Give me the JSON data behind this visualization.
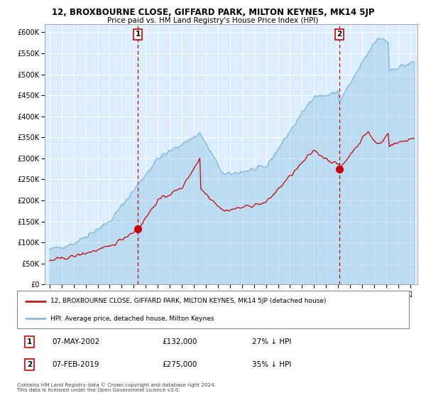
{
  "title": "12, BROXBOURNE CLOSE, GIFFARD PARK, MILTON KEYNES, MK14 5JP",
  "subtitle": "Price paid vs. HM Land Registry's House Price Index (HPI)",
  "legend_line1": "12, BROXBOURNE CLOSE, GIFFARD PARK, MILTON KEYNES, MK14 5JP (detached house)",
  "legend_line2": "HPI: Average price, detached house, Milton Keynes",
  "sale1_date": "07-MAY-2002",
  "sale1_price": 132000,
  "sale1_hpi": "27% ↓ HPI",
  "sale2_date": "07-FEB-2019",
  "sale2_price": 275000,
  "sale2_hpi": "35% ↓ HPI",
  "copyright": "Contains HM Land Registry data © Crown copyright and database right 2024.\nThis data is licensed under the Open Government Licence v3.0.",
  "hpi_color": "#7ab8d9",
  "hpi_fill": "#c8e0f0",
  "price_color": "#cc0000",
  "marker_color": "#cc0000",
  "dashed_line_color": "#cc0000",
  "background_fill": "#ddeeff",
  "grid_color": "#ffffff",
  "ylim": [
    0,
    620000
  ],
  "yticks": [
    0,
    50000,
    100000,
    150000,
    200000,
    250000,
    300000,
    350000,
    400000,
    450000,
    500000,
    550000,
    600000
  ],
  "sale1_year": 2002.35,
  "sale2_year": 2019.1
}
